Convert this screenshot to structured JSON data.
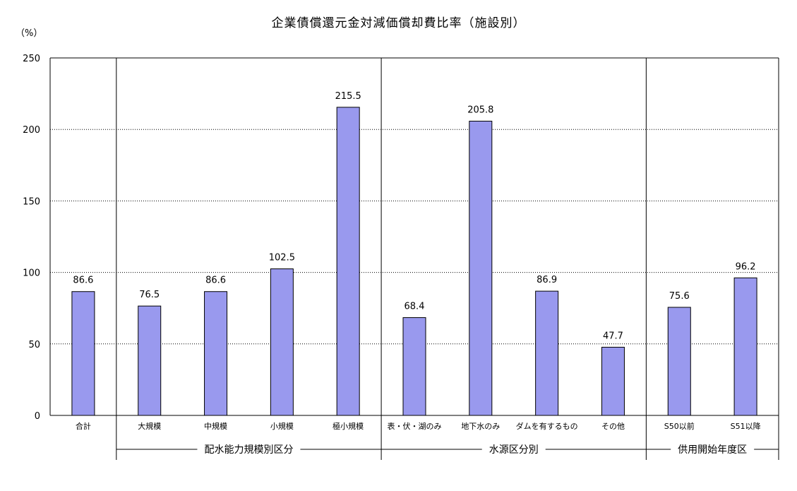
{
  "chart_data": {
    "type": "bar",
    "title": "企業債償還元金対減価償却費比率（施設別）",
    "unit_label": "（%）",
    "ylim": [
      0,
      250
    ],
    "yticks": [
      "0",
      "50",
      "100",
      "150",
      "200",
      "250"
    ],
    "grid": "dotted horizontal",
    "bar_color": "#9999ee",
    "categories": [
      "合計",
      "大規模",
      "中規模",
      "小規模",
      "極小規模",
      "表・伏・湖のみ",
      "地下水のみ",
      "ダムを有するもの",
      "その他",
      "S50以前",
      "S51以降"
    ],
    "values": [
      86.6,
      76.5,
      86.6,
      102.5,
      215.5,
      68.4,
      205.8,
      86.9,
      47.7,
      75.6,
      96.2
    ],
    "value_labels": [
      "86.6",
      "76.5",
      "86.6",
      "102.5",
      "215.5",
      "68.4",
      "205.8",
      "86.9",
      "47.7",
      "75.6",
      "96.2"
    ],
    "groups": [
      {
        "label": "配水能力規模別区分",
        "start": 1,
        "end": 4
      },
      {
        "label": "水源区分別",
        "start": 5,
        "end": 8
      },
      {
        "label": "供用開始年度区",
        "start": 9,
        "end": 10
      }
    ]
  }
}
